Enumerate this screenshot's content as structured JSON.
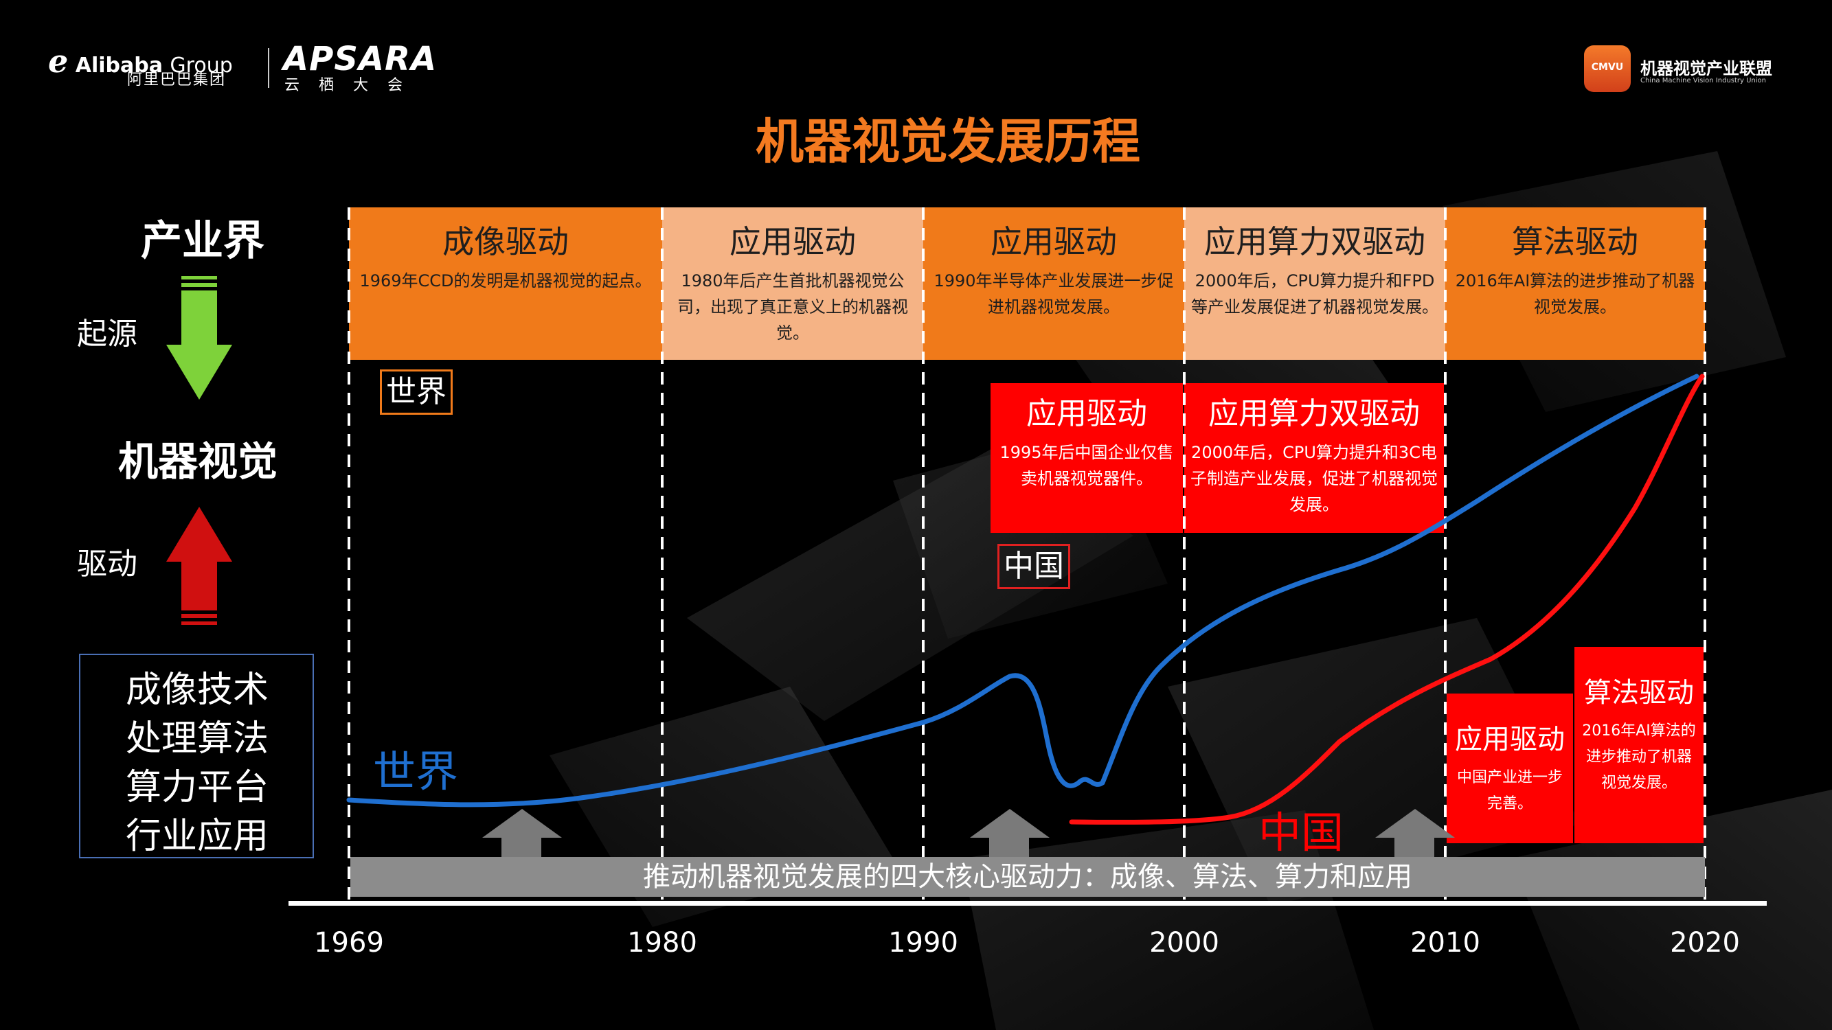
{
  "header": {
    "alibaba_name": "Alibaba",
    "alibaba_group": "Group",
    "alibaba_cn": "阿里巴巴集团",
    "apsara_name": "APSARA",
    "apsara_cn": "云栖大会",
    "cmvu_abbr": "CMVU",
    "cmvu_name": "机器视觉产业联盟",
    "cmvu_en": "China Machine Vision Industry Union"
  },
  "title": "机器视觉发展历程",
  "left_panel": {
    "industry": "产业界",
    "origin": "起源",
    "machine_vision": "机器视觉",
    "drive": "驱动",
    "tech": [
      "成像技术",
      "处理算法",
      "算力平台",
      "行业应用"
    ]
  },
  "world_phases": [
    {
      "title": "成像驱动",
      "desc": "1969年CCD的发明是机器视觉的起点。"
    },
    {
      "title": "应用驱动",
      "desc": "1980年后产生首批机器视觉公司，出现了真正意义上的机器视觉。"
    },
    {
      "title": "应用驱动",
      "desc": "1990年半导体产业发展进一步促进机器视觉发展。"
    },
    {
      "title": "应用算力双驱动",
      "desc": "2000年后，CPU算力提升和FPD等产业发展促进了机器视觉发展。"
    },
    {
      "title": "算法驱动",
      "desc": "2016年AI算法的进步推动了机器视觉发展。"
    }
  ],
  "china_phases": [
    {
      "title": "应用驱动",
      "desc": "1995年后中国企业仅售卖机器视觉器件。"
    },
    {
      "title": "应用算力双驱动",
      "desc": "2000年后，CPU算力提升和3C电子制造产业发展，促进了机器视觉发展。"
    },
    {
      "title": "应用驱动",
      "desc": "中国产业进一步完善。"
    },
    {
      "title": "算法驱动",
      "desc": "2016年AI算法的进步推动了机器视觉发展。"
    }
  ],
  "tags": {
    "world": "世界",
    "china": "中国"
  },
  "curve_labels": {
    "world": "世界",
    "china": "中国"
  },
  "bottom_band": "推动机器视觉发展的四大核心驱动力：成像、算法、算力和应用",
  "timeline": {
    "years": [
      "1969",
      "1980",
      "1990",
      "2000",
      "2010",
      "2020"
    ]
  },
  "colors": {
    "accent_orange": "#f07a1a",
    "peach": "#f5b385",
    "china_red": "#ff0000",
    "world_blue": "#1f6fd0",
    "arrow_green": "#7ed23a",
    "arrow_red": "#d01010"
  }
}
